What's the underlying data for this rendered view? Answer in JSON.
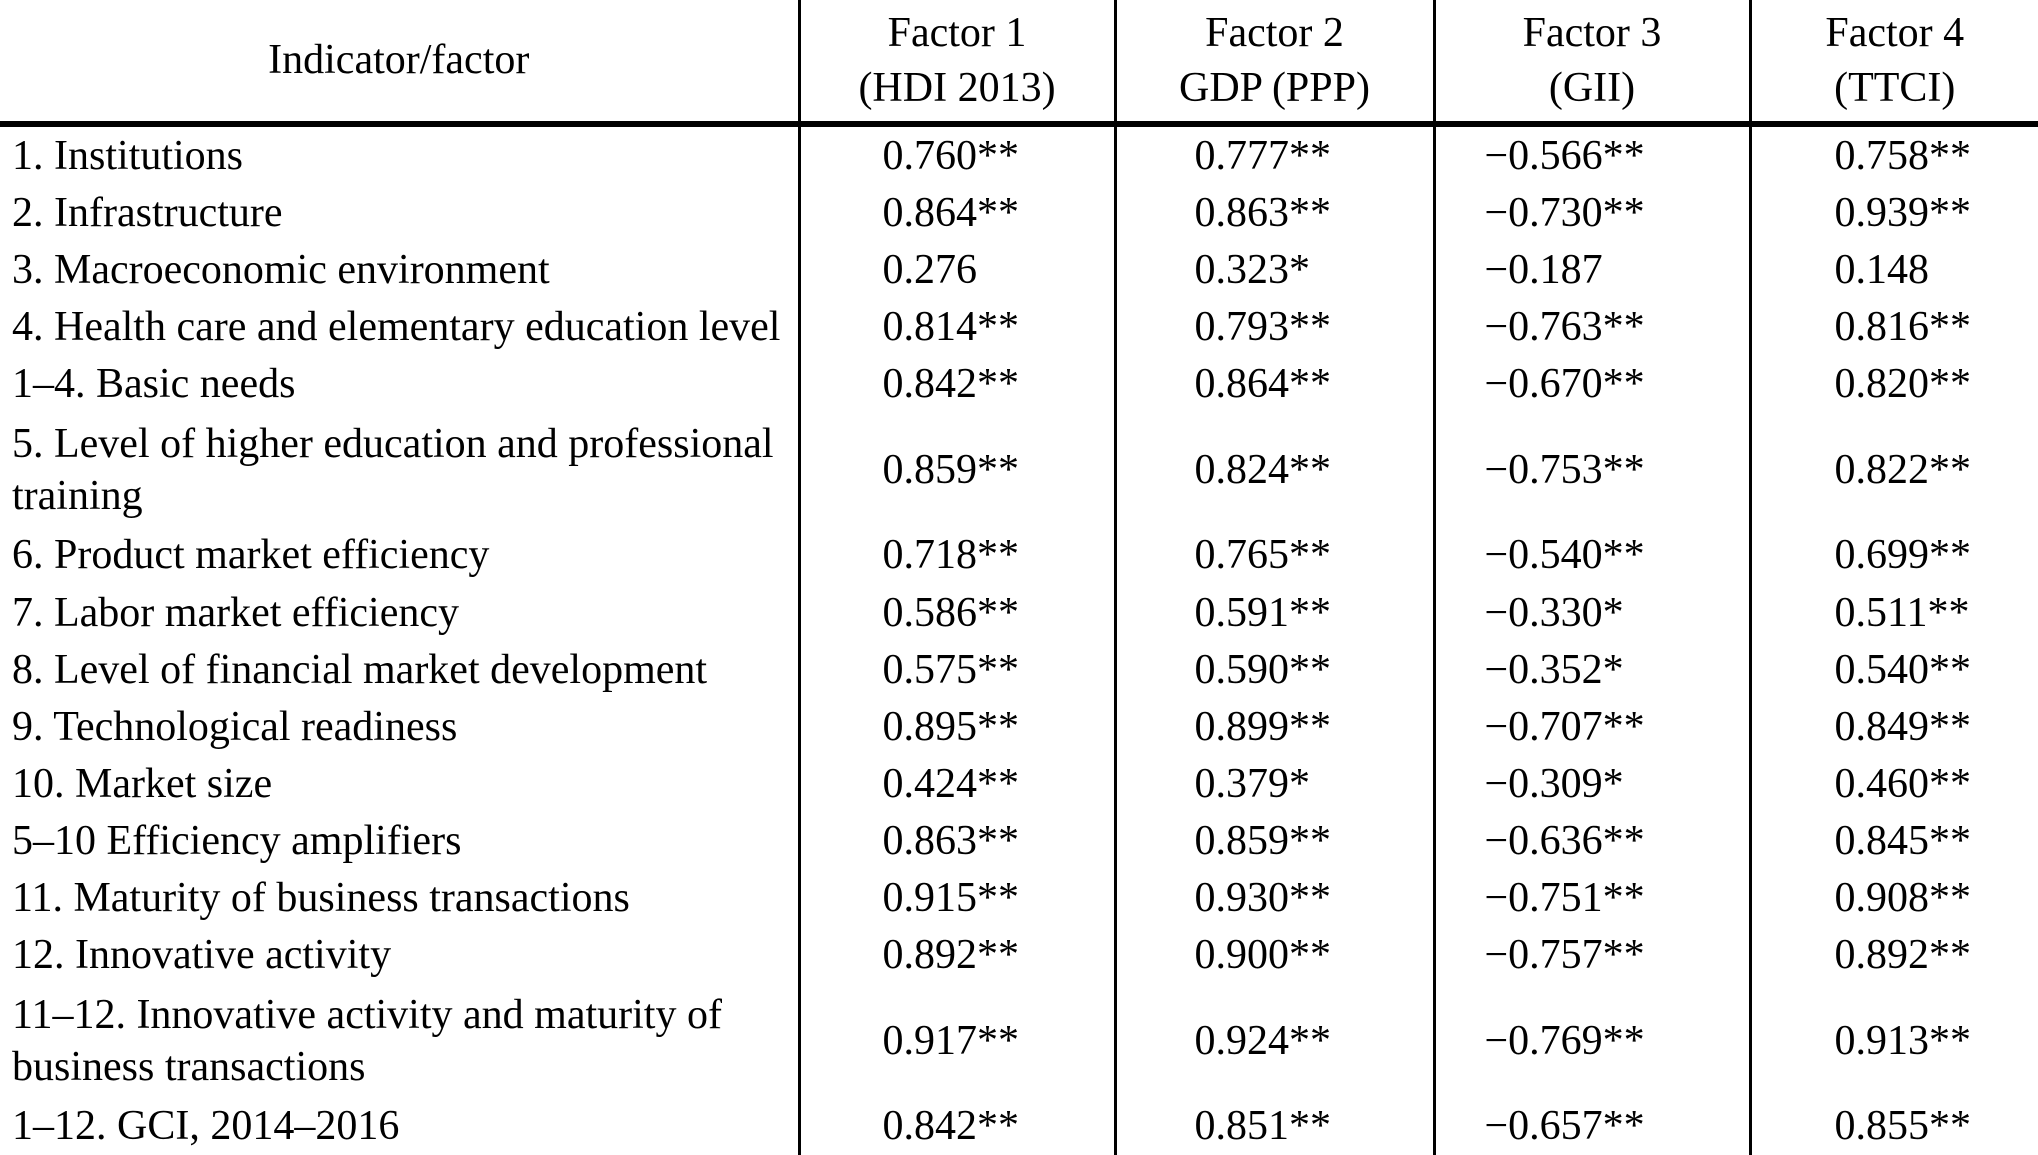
{
  "header": {
    "indicator_label": "Indicator/factor",
    "factors": [
      {
        "line1": "Factor 1",
        "line2": "(HDI 2013)"
      },
      {
        "line1": "Factor 2",
        "line2": "GDP (PPP)"
      },
      {
        "line1": "Factor 3",
        "line2": "(GII)"
      },
      {
        "line1": "Factor 4",
        "line2": "(TTCI)"
      }
    ]
  },
  "chart_data": {
    "type": "table",
    "columns": [
      "Indicator/factor",
      "Factor 1 (HDI 2013)",
      "Factor 2 GDP (PPP)",
      "Factor 3 (GII)",
      "Factor 4 (TTCI)"
    ],
    "rows": [
      [
        "1. Institutions",
        "0.760**",
        "0.777**",
        "−0.566**",
        "0.758**"
      ],
      [
        "2. Infrastructure",
        "0.864**",
        "0.863**",
        "−0.730**",
        "0.939**"
      ],
      [
        "3. Macroeconomic environment",
        "0.276",
        "0.323*",
        "−0.187",
        "0.148"
      ],
      [
        "4. Health care and elementary education level",
        "0.814**",
        "0.793**",
        "−0.763**",
        "0.816**"
      ],
      [
        "1–4. Basic needs",
        "0.842**",
        "0.864**",
        "−0.670**",
        "0.820**"
      ],
      [
        "5. Level of higher education and professional training",
        "0.859**",
        "0.824**",
        "−0.753**",
        "0.822**"
      ],
      [
        "6. Product market efficiency",
        "0.718**",
        "0.765**",
        "−0.540**",
        "0.699**"
      ],
      [
        "7. Labor market efficiency",
        "0.586**",
        "0.591**",
        "−0.330*",
        "0.511**"
      ],
      [
        "8. Level of financial market development",
        "0.575**",
        "0.590**",
        "−0.352*",
        "0.540**"
      ],
      [
        "9. Technological readiness",
        "0.895**",
        "0.899**",
        "−0.707**",
        "0.849**"
      ],
      [
        "10. Market size",
        "0.424**",
        "0.379*",
        "−0.309*",
        "0.460**"
      ],
      [
        "5–10 Efficiency amplifiers",
        "0.863**",
        "0.859**",
        "−0.636**",
        "0.845**"
      ],
      [
        "11. Maturity of business transactions",
        "0.915**",
        "0.930**",
        "−0.751**",
        "0.908**"
      ],
      [
        "12. Innovative activity",
        "0.892**",
        "0.900**",
        "−0.757**",
        "0.892**"
      ],
      [
        "11–12. Innovative activity and maturity of business transactions",
        "0.917**",
        "0.924**",
        "−0.769**",
        "0.913**"
      ],
      [
        "1–12. GCI, 2014–2016",
        "0.842**",
        "0.851**",
        "−0.657**",
        "0.855**"
      ]
    ]
  }
}
